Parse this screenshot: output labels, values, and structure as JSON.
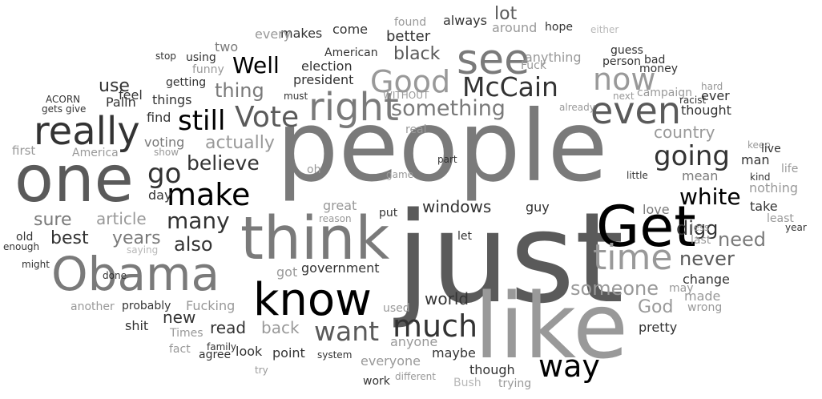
{
  "palette": {
    "g0": "#000000",
    "g1": "#333333",
    "g2": "#5a5a5a",
    "g3": "#7a7a7a",
    "g4": "#999999",
    "g5": "#b8b8b8"
  },
  "words": [
    {
      "text": "people",
      "tone": "g3"
    },
    {
      "text": "just",
      "tone": "g2"
    },
    {
      "text": "like",
      "tone": "g4"
    },
    {
      "text": "think",
      "tone": "g3"
    },
    {
      "text": "one",
      "tone": "g2"
    },
    {
      "text": "Obama",
      "tone": "g3"
    },
    {
      "text": "know",
      "tone": "g0"
    },
    {
      "text": "Get",
      "tone": "g0"
    },
    {
      "text": "really",
      "tone": "g1"
    },
    {
      "text": "right",
      "tone": "g3"
    },
    {
      "text": "see",
      "tone": "g3"
    },
    {
      "text": "even",
      "tone": "g2"
    },
    {
      "text": "time",
      "tone": "g4"
    },
    {
      "text": "McCain",
      "tone": "g1"
    },
    {
      "text": "Good",
      "tone": "g4"
    },
    {
      "text": "now",
      "tone": "g4"
    },
    {
      "text": "make",
      "tone": "g0"
    },
    {
      "text": "much",
      "tone": "g1"
    },
    {
      "text": "want",
      "tone": "g2"
    },
    {
      "text": "way",
      "tone": "g0"
    },
    {
      "text": "Vote",
      "tone": "g2"
    },
    {
      "text": "still",
      "tone": "g0"
    },
    {
      "text": "go",
      "tone": "g1"
    },
    {
      "text": "going",
      "tone": "g1"
    },
    {
      "text": "Well",
      "tone": "g0"
    },
    {
      "text": "something",
      "tone": "g3"
    },
    {
      "text": "believe",
      "tone": "g1"
    },
    {
      "text": "many",
      "tone": "g1"
    },
    {
      "text": "white",
      "tone": "g0"
    },
    {
      "text": "digg",
      "tone": "g1"
    },
    {
      "text": "never",
      "tone": "g2"
    },
    {
      "text": "also",
      "tone": "g1"
    },
    {
      "text": "someone",
      "tone": "g4"
    },
    {
      "text": "thing",
      "tone": "g3"
    },
    {
      "text": "black",
      "tone": "g2"
    },
    {
      "text": "lot",
      "tone": "g2"
    },
    {
      "text": "use",
      "tone": "g1"
    },
    {
      "text": "actually",
      "tone": "g4"
    },
    {
      "text": "country",
      "tone": "g4"
    },
    {
      "text": "sure",
      "tone": "g3"
    },
    {
      "text": "article",
      "tone": "g4"
    },
    {
      "text": "years",
      "tone": "g3"
    },
    {
      "text": "best",
      "tone": "g1"
    },
    {
      "text": "windows",
      "tone": "g1"
    },
    {
      "text": "government",
      "tone": "g1"
    },
    {
      "text": "world",
      "tone": "g1"
    },
    {
      "text": "new",
      "tone": "g1"
    },
    {
      "text": "read",
      "tone": "g1"
    },
    {
      "text": "back",
      "tone": "g4"
    },
    {
      "text": "point",
      "tone": "g1"
    },
    {
      "text": "God",
      "tone": "g4"
    },
    {
      "text": "pretty",
      "tone": "g1"
    },
    {
      "text": "need",
      "tone": "g3"
    },
    {
      "text": "man",
      "tone": "g1"
    },
    {
      "text": "take",
      "tone": "g1"
    },
    {
      "text": "better",
      "tone": "g1"
    },
    {
      "text": "Fucking",
      "tone": "g4"
    },
    {
      "text": "shit",
      "tone": "g1"
    },
    {
      "text": "guy",
      "tone": "g1"
    },
    {
      "text": "maybe",
      "tone": "g1"
    },
    {
      "text": "though",
      "tone": "g1"
    },
    {
      "text": "look",
      "tone": "g1"
    },
    {
      "text": "got",
      "tone": "g4"
    },
    {
      "text": "anyone",
      "tone": "g4"
    },
    {
      "text": "everyone",
      "tone": "g4"
    },
    {
      "text": "change",
      "tone": "g1"
    },
    {
      "text": "made",
      "tone": "g4"
    },
    {
      "text": "wrong",
      "tone": "g4"
    },
    {
      "text": "love",
      "tone": "g3"
    },
    {
      "text": "mean",
      "tone": "g3"
    },
    {
      "text": "ever",
      "tone": "g1"
    },
    {
      "text": "thought",
      "tone": "g1"
    },
    {
      "text": "feel",
      "tone": "g1"
    },
    {
      "text": "things",
      "tone": "g1"
    },
    {
      "text": "find",
      "tone": "g1"
    },
    {
      "text": "Palin",
      "tone": "g1"
    },
    {
      "text": "voting",
      "tone": "g3"
    },
    {
      "text": "first",
      "tone": "g4"
    },
    {
      "text": "America",
      "tone": "g4"
    },
    {
      "text": "day",
      "tone": "g1"
    },
    {
      "text": "old",
      "tone": "g1"
    },
    {
      "text": "enough",
      "tone": "g1"
    },
    {
      "text": "election",
      "tone": "g1"
    },
    {
      "text": "president",
      "tone": "g1"
    },
    {
      "text": "anything",
      "tone": "g4"
    },
    {
      "text": "around",
      "tone": "g4"
    },
    {
      "text": "come",
      "tone": "g1"
    },
    {
      "text": "makes",
      "tone": "g1"
    },
    {
      "text": "every",
      "tone": "g4"
    },
    {
      "text": "two",
      "tone": "g3"
    },
    {
      "text": "always",
      "tone": "g1"
    },
    {
      "text": "found",
      "tone": "g4"
    },
    {
      "text": "hope",
      "tone": "g1"
    },
    {
      "text": "either",
      "tone": "g5"
    },
    {
      "text": "guess",
      "tone": "g1"
    },
    {
      "text": "money",
      "tone": "g1"
    },
    {
      "text": "person",
      "tone": "g1"
    },
    {
      "text": "bad",
      "tone": "g1"
    },
    {
      "text": "campaign",
      "tone": "g4"
    },
    {
      "text": "hard",
      "tone": "g4"
    },
    {
      "text": "racist",
      "tone": "g1"
    },
    {
      "text": "next",
      "tone": "g4"
    },
    {
      "text": "already",
      "tone": "g4"
    },
    {
      "text": "American",
      "tone": "g1"
    },
    {
      "text": "Fuck",
      "tone": "g4"
    },
    {
      "text": "funny",
      "tone": "g4"
    },
    {
      "text": "getting",
      "tone": "g1"
    },
    {
      "text": "using",
      "tone": "g1"
    },
    {
      "text": "stop",
      "tone": "g1"
    },
    {
      "text": "must",
      "tone": "g1"
    },
    {
      "text": "WITHOUT",
      "tone": "g4"
    },
    {
      "text": "ACORN",
      "tone": "g1"
    },
    {
      "text": "gets",
      "tone": "g1"
    },
    {
      "text": "give",
      "tone": "g1"
    },
    {
      "text": "real",
      "tone": "g4"
    },
    {
      "text": "show",
      "tone": "g4"
    },
    {
      "text": "oh",
      "tone": "g4"
    },
    {
      "text": "game",
      "tone": "g4"
    },
    {
      "text": "part",
      "tone": "g1"
    },
    {
      "text": "great",
      "tone": "g4"
    },
    {
      "text": "reason",
      "tone": "g4"
    },
    {
      "text": "put",
      "tone": "g1"
    },
    {
      "text": "let",
      "tone": "g1"
    },
    {
      "text": "keep",
      "tone": "g4"
    },
    {
      "text": "live",
      "tone": "g1"
    },
    {
      "text": "kind",
      "tone": "g1"
    },
    {
      "text": "life",
      "tone": "g4"
    },
    {
      "text": "little",
      "tone": "g1"
    },
    {
      "text": "nothing",
      "tone": "g4"
    },
    {
      "text": "less",
      "tone": "g4"
    },
    {
      "text": "least",
      "tone": "g4"
    },
    {
      "text": "year",
      "tone": "g1"
    },
    {
      "text": "last",
      "tone": "g4"
    },
    {
      "text": "may",
      "tone": "g4"
    },
    {
      "text": "saying",
      "tone": "g5"
    },
    {
      "text": "might",
      "tone": "g1"
    },
    {
      "text": "done",
      "tone": "g1"
    },
    {
      "text": "another",
      "tone": "g4"
    },
    {
      "text": "probably",
      "tone": "g1"
    },
    {
      "text": "Times",
      "tone": "g4"
    },
    {
      "text": "family",
      "tone": "g1"
    },
    {
      "text": "agree",
      "tone": "g1"
    },
    {
      "text": "fact",
      "tone": "g4"
    },
    {
      "text": "try",
      "tone": "g4"
    },
    {
      "text": "system",
      "tone": "g1"
    },
    {
      "text": "work",
      "tone": "g1"
    },
    {
      "text": "different",
      "tone": "g4"
    },
    {
      "text": "Bush",
      "tone": "g5"
    },
    {
      "text": "trying",
      "tone": "g4"
    },
    {
      "text": "used",
      "tone": "g4"
    }
  ]
}
